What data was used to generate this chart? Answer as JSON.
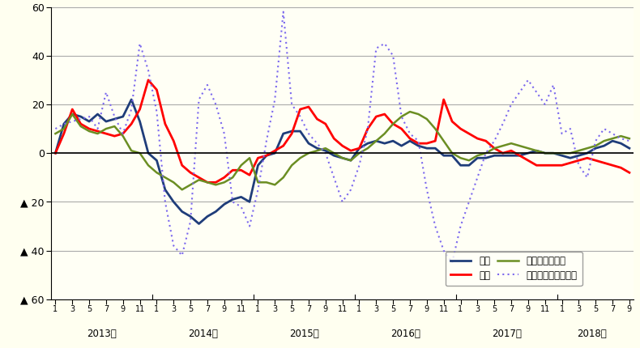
{
  "background_color": "#FFFFF0",
  "plot_bg_color": "#FFFFF5",
  "ylim": [
    -60,
    60
  ],
  "yticks": [
    60,
    40,
    20,
    0,
    -20,
    -40,
    -60
  ],
  "ytick_labels_pos": [
    "60",
    "40",
    "20",
    "0"
  ],
  "ytick_labels_neg": [
    "▲ 20",
    "▲ 40",
    "▲ 60"
  ],
  "grid_color": "#aaaaaa",
  "series": {
    "持家": {
      "color": "#1f3d7a",
      "linewidth": 2.0,
      "linestyle": "solid",
      "values": [
        0,
        12,
        16,
        15,
        13,
        16,
        13,
        14,
        15,
        22,
        13,
        0,
        -3,
        -15,
        -20,
        -24,
        -26,
        -29,
        -26,
        -24,
        -21,
        -19,
        -18,
        -20,
        -5,
        -1,
        0,
        8,
        9,
        9,
        4,
        2,
        1,
        -1,
        -2,
        -3,
        2,
        4,
        5,
        4,
        5,
        3,
        5,
        3,
        2,
        2,
        -1,
        -1,
        -5,
        -5,
        -2,
        -2,
        -1,
        -1,
        -1,
        -1,
        0,
        1,
        0,
        0,
        -1,
        -2,
        -1,
        0,
        2,
        3,
        5,
        4,
        2
      ]
    },
    "貸家": {
      "color": "#FF0000",
      "linewidth": 2.0,
      "linestyle": "solid",
      "values": [
        0,
        8,
        18,
        12,
        10,
        9,
        8,
        7,
        8,
        12,
        18,
        30,
        26,
        12,
        5,
        -5,
        -8,
        -10,
        -12,
        -12,
        -10,
        -7,
        -7,
        -9,
        -2,
        -1,
        1,
        3,
        8,
        18,
        19,
        14,
        12,
        6,
        3,
        1,
        2,
        10,
        15,
        16,
        12,
        10,
        6,
        4,
        4,
        5,
        22,
        13,
        10,
        8,
        6,
        5,
        2,
        0,
        1,
        -1,
        -3,
        -5,
        -5,
        -5,
        -5,
        -4,
        -3,
        -2,
        -3,
        -4,
        -5,
        -6,
        -8
      ]
    },
    "分譲（一戸建）": {
      "color": "#6B8E23",
      "linewidth": 1.8,
      "linestyle": "solid",
      "values": [
        8,
        10,
        16,
        11,
        9,
        8,
        10,
        11,
        7,
        1,
        0,
        -5,
        -8,
        -10,
        -12,
        -15,
        -13,
        -11,
        -12,
        -13,
        -12,
        -10,
        -5,
        -2,
        -12,
        -12,
        -13,
        -10,
        -5,
        -2,
        0,
        1,
        2,
        0,
        -2,
        -3,
        0,
        2,
        5,
        8,
        12,
        15,
        17,
        16,
        14,
        10,
        5,
        0,
        -2,
        -3,
        -1,
        0,
        2,
        3,
        4,
        3,
        2,
        1,
        0,
        0,
        0,
        0,
        1,
        2,
        3,
        5,
        6,
        7,
        6
      ]
    },
    "分譲（マンション）": {
      "color": "#7B68EE",
      "linewidth": 1.5,
      "linestyle": "dotted",
      "values": [
        10,
        12,
        13,
        14,
        15,
        10,
        25,
        15,
        8,
        18,
        45,
        34,
        17,
        -20,
        -38,
        -42,
        -28,
        22,
        28,
        20,
        8,
        -20,
        -22,
        -30,
        -15,
        5,
        22,
        58,
        20,
        15,
        8,
        4,
        0,
        -10,
        -20,
        -15,
        -5,
        10,
        43,
        45,
        40,
        15,
        8,
        5,
        -15,
        -30,
        -40,
        -45,
        -30,
        -20,
        -10,
        0,
        5,
        12,
        20,
        25,
        30,
        25,
        20,
        28,
        8,
        10,
        -5,
        -10,
        5,
        10,
        8,
        6,
        5
      ]
    }
  },
  "year_starts": [
    0,
    12,
    24,
    36,
    48,
    60
  ],
  "year_labels": [
    "2013年",
    "2014年",
    "2015年",
    "2016年",
    "2017年",
    "2018年"
  ],
  "year_centers": [
    5.5,
    17.5,
    29.5,
    41.5,
    53.5,
    63.5
  ],
  "months_per_year": [
    12,
    12,
    12,
    12,
    12,
    9
  ],
  "legend_labels": [
    "持家",
    "貸家",
    "分譲（一戸建）",
    "分譲（マンション）"
  ]
}
